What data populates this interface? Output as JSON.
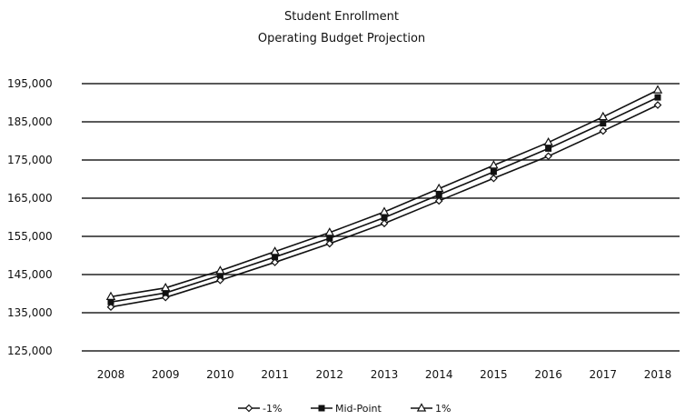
{
  "chart_data": {
    "type": "line",
    "title": "Student Enrollment",
    "subtitle": "Operating Budget Projection",
    "xlabel": "",
    "ylabel": "",
    "categories": [
      "2008",
      "2009",
      "2010",
      "2011",
      "2012",
      "2013",
      "2014",
      "2015",
      "2016",
      "2017",
      "2018"
    ],
    "y_ticks": [
      "195,000",
      "185,000",
      "175,000",
      "165,000",
      "155,000",
      "145,000",
      "135,000",
      "125,000"
    ],
    "ylim": [
      125000,
      195000
    ],
    "grid": true,
    "legend_position": "bottom",
    "series": [
      {
        "name": "-1%",
        "marker": "diamond",
        "values": [
          136500,
          139000,
          143500,
          148200,
          153100,
          158400,
          164300,
          170200,
          176000,
          182600,
          189400
        ]
      },
      {
        "name": "Mid-Point",
        "marker": "square",
        "values": [
          137800,
          140200,
          144800,
          149600,
          154500,
          159900,
          165900,
          171900,
          178000,
          184600,
          191400
        ]
      },
      {
        "name": "1%",
        "marker": "triangle",
        "values": [
          139200,
          141500,
          146000,
          151000,
          156000,
          161400,
          167500,
          173600,
          179600,
          186300,
          193300
        ]
      }
    ]
  }
}
